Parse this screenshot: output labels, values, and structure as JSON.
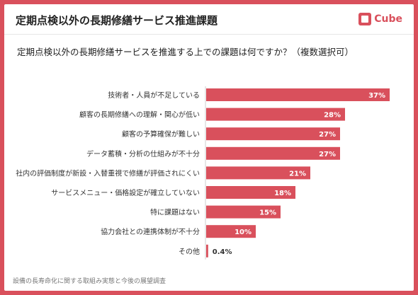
{
  "header": {
    "title": "定期点検以外の長期修繕サービス推進課題",
    "logo_text": "Cube",
    "icon": "lcube-logo"
  },
  "question": "定期点検以外の長期修繕サービスを推進する上での課題は何ですか？（複数選択可）",
  "source": "設備の長寿命化に関する取組み実態と今後の展望調査",
  "colors": {
    "bar": "#d9505c",
    "frame": "#d9505c"
  },
  "chart_data": {
    "type": "bar",
    "orientation": "horizontal",
    "categories": [
      "技術者・人員が不足している",
      "顧客の長期修繕への理解・関心が低い",
      "顧客の予算確保が難しい",
      "データ蓄積・分析の仕組みが不十分",
      "社内の評価制度が新設・入替重視で修繕が評価されにくい",
      "サービスメニュー・価格設定が確立していない",
      "特に課題はない",
      "協力会社との連携体制が不十分",
      "その他"
    ],
    "values": [
      37,
      28,
      27,
      27,
      21,
      18,
      15,
      10,
      0.4
    ],
    "value_labels": [
      "37%",
      "28%",
      "27%",
      "27%",
      "21%",
      "18%",
      "15%",
      "10%",
      "0.4%"
    ],
    "unit": "%"
  }
}
